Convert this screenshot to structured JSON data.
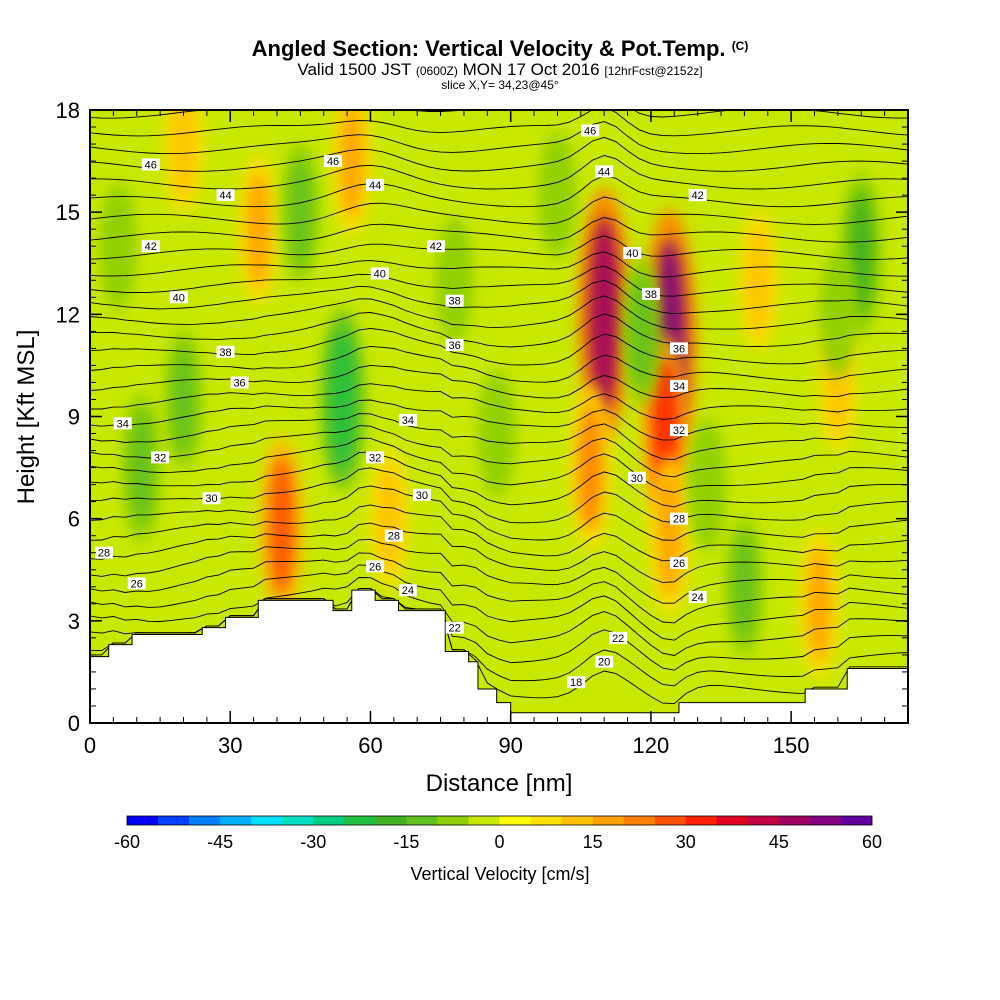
{
  "header": {
    "title": "Angled Section: Vertical Velocity & Pot.Temp.",
    "title_suffix": "(C)",
    "subtitle_pre": "Valid 1500 JST",
    "subtitle_small1": "(0600Z)",
    "subtitle_mid": "MON 17 Oct 2016",
    "subtitle_small2": "[12hrFcst@2152z]",
    "slice": "slice X,Y= 34,23@45°"
  },
  "chart_data": {
    "type": "heatmap",
    "xlabel": "Distance [nm]",
    "ylabel": "Height [Kft MSL]",
    "xlim": [
      0,
      175
    ],
    "ylim": [
      0,
      18
    ],
    "x_ticks": [
      0,
      30,
      60,
      90,
      120,
      150
    ],
    "y_ticks": [
      0,
      3,
      6,
      9,
      12,
      15,
      18
    ],
    "colorbar": {
      "title": "Vertical Velocity [cm/s]",
      "range": [
        -60,
        60
      ],
      "tick_labels": [
        "-60",
        "-45",
        "-30",
        "-15",
        "0",
        "15",
        "30",
        "45",
        "60"
      ],
      "colors": [
        "#0000ff",
        "#0040ff",
        "#0080ff",
        "#00b0ff",
        "#00e0ff",
        "#00e0c0",
        "#00d080",
        "#20c040",
        "#40b020",
        "#60c020",
        "#90d000",
        "#c8e800",
        "#ffff00",
        "#ffe000",
        "#ffc000",
        "#ffa000",
        "#ff8000",
        "#ff5000",
        "#ff2000",
        "#e00020",
        "#c00040",
        "#a00060",
        "#800080",
        "#6000a0"
      ]
    },
    "terrain_kft": [
      [
        0,
        1.95
      ],
      [
        4,
        2.3
      ],
      [
        9,
        2.6
      ],
      [
        24,
        2.8
      ],
      [
        29,
        3.1
      ],
      [
        36,
        3.6
      ],
      [
        48,
        3.6
      ],
      [
        52,
        3.3
      ],
      [
        56,
        3.9
      ],
      [
        61,
        3.6
      ],
      [
        66,
        3.3
      ],
      [
        74,
        3.3
      ],
      [
        76,
        2.1
      ],
      [
        81,
        1.8
      ],
      [
        83,
        1.0
      ],
      [
        87,
        0.6
      ],
      [
        90,
        0.3
      ],
      [
        118,
        0.3
      ],
      [
        126,
        0.6
      ],
      [
        146,
        0.6
      ],
      [
        153,
        1.0
      ],
      [
        162,
        1.6
      ],
      [
        175,
        1.6
      ]
    ],
    "vertical_velocity_cells": [
      {
        "x": 110,
        "y": 12.0,
        "value": 48
      },
      {
        "x": 124,
        "y": 11.2,
        "value": 52
      },
      {
        "x": 123,
        "y": 8.5,
        "value": 30
      },
      {
        "x": 124,
        "y": 5.5,
        "value": 18
      },
      {
        "x": 107,
        "y": 7.5,
        "value": 20
      },
      {
        "x": 41,
        "y": 5.8,
        "value": 25
      },
      {
        "x": 36,
        "y": 14.5,
        "value": 15
      },
      {
        "x": 56,
        "y": 16.5,
        "value": 15
      },
      {
        "x": 20,
        "y": 17.0,
        "value": 12
      },
      {
        "x": 143,
        "y": 13.0,
        "value": 12
      },
      {
        "x": 156,
        "y": 3.5,
        "value": 15
      },
      {
        "x": 64,
        "y": 6.0,
        "value": 12
      },
      {
        "x": 160,
        "y": 10.0,
        "value": 10
      },
      {
        "x": 54,
        "y": 9.5,
        "value": -25
      },
      {
        "x": 11,
        "y": 7.5,
        "value": -15
      },
      {
        "x": 118,
        "y": 11.5,
        "value": -15
      },
      {
        "x": 132,
        "y": 7.0,
        "value": -10
      },
      {
        "x": 140,
        "y": 4.0,
        "value": -12
      },
      {
        "x": 165,
        "y": 13.8,
        "value": -20
      },
      {
        "x": 160,
        "y": 12.0,
        "value": -8
      },
      {
        "x": 45,
        "y": 15.0,
        "value": -12
      },
      {
        "x": 78,
        "y": 13.0,
        "value": -8
      },
      {
        "x": 100,
        "y": 15.5,
        "value": -8
      },
      {
        "x": 20,
        "y": 9.5,
        "value": -12
      },
      {
        "x": 6,
        "y": 14.0,
        "value": -8
      },
      {
        "x": 87,
        "y": 8.5,
        "value": -8
      }
    ],
    "potential_temperature_labels": [
      {
        "x": 13,
        "y": 16.4,
        "text": "46"
      },
      {
        "x": 52,
        "y": 16.5,
        "text": "46"
      },
      {
        "x": 107,
        "y": 17.4,
        "text": "46"
      },
      {
        "x": 29,
        "y": 15.5,
        "text": "44"
      },
      {
        "x": 61,
        "y": 15.8,
        "text": "44"
      },
      {
        "x": 110,
        "y": 16.2,
        "text": "44"
      },
      {
        "x": 13,
        "y": 14.0,
        "text": "42"
      },
      {
        "x": 74,
        "y": 14.0,
        "text": "42"
      },
      {
        "x": 130,
        "y": 15.5,
        "text": "42"
      },
      {
        "x": 19,
        "y": 12.5,
        "text": "40"
      },
      {
        "x": 62,
        "y": 13.2,
        "text": "40"
      },
      {
        "x": 116,
        "y": 13.8,
        "text": "40"
      },
      {
        "x": 29,
        "y": 10.9,
        "text": "38"
      },
      {
        "x": 78,
        "y": 12.4,
        "text": "38"
      },
      {
        "x": 120,
        "y": 12.6,
        "text": "38"
      },
      {
        "x": 32,
        "y": 10.0,
        "text": "36"
      },
      {
        "x": 78,
        "y": 11.1,
        "text": "36"
      },
      {
        "x": 126,
        "y": 11.0,
        "text": "36"
      },
      {
        "x": 7,
        "y": 8.8,
        "text": "34"
      },
      {
        "x": 68,
        "y": 8.9,
        "text": "34"
      },
      {
        "x": 126,
        "y": 9.9,
        "text": "34"
      },
      {
        "x": 15,
        "y": 7.8,
        "text": "32"
      },
      {
        "x": 61,
        "y": 7.8,
        "text": "32"
      },
      {
        "x": 126,
        "y": 8.6,
        "text": "32"
      },
      {
        "x": 26,
        "y": 6.6,
        "text": "30"
      },
      {
        "x": 71,
        "y": 6.7,
        "text": "30"
      },
      {
        "x": 117,
        "y": 7.2,
        "text": "30"
      },
      {
        "x": 3,
        "y": 5.0,
        "text": "28"
      },
      {
        "x": 65,
        "y": 5.5,
        "text": "28"
      },
      {
        "x": 126,
        "y": 6.0,
        "text": "28"
      },
      {
        "x": 10,
        "y": 4.1,
        "text": "26"
      },
      {
        "x": 61,
        "y": 4.6,
        "text": "26"
      },
      {
        "x": 126,
        "y": 4.7,
        "text": "26"
      },
      {
        "x": 68,
        "y": 3.9,
        "text": "24"
      },
      {
        "x": 130,
        "y": 3.7,
        "text": "24"
      },
      {
        "x": 78,
        "y": 2.8,
        "text": "22"
      },
      {
        "x": 113,
        "y": 2.5,
        "text": "22"
      },
      {
        "x": 110,
        "y": 1.8,
        "text": "20"
      },
      {
        "x": 104,
        "y": 1.2,
        "text": "18"
      }
    ]
  }
}
